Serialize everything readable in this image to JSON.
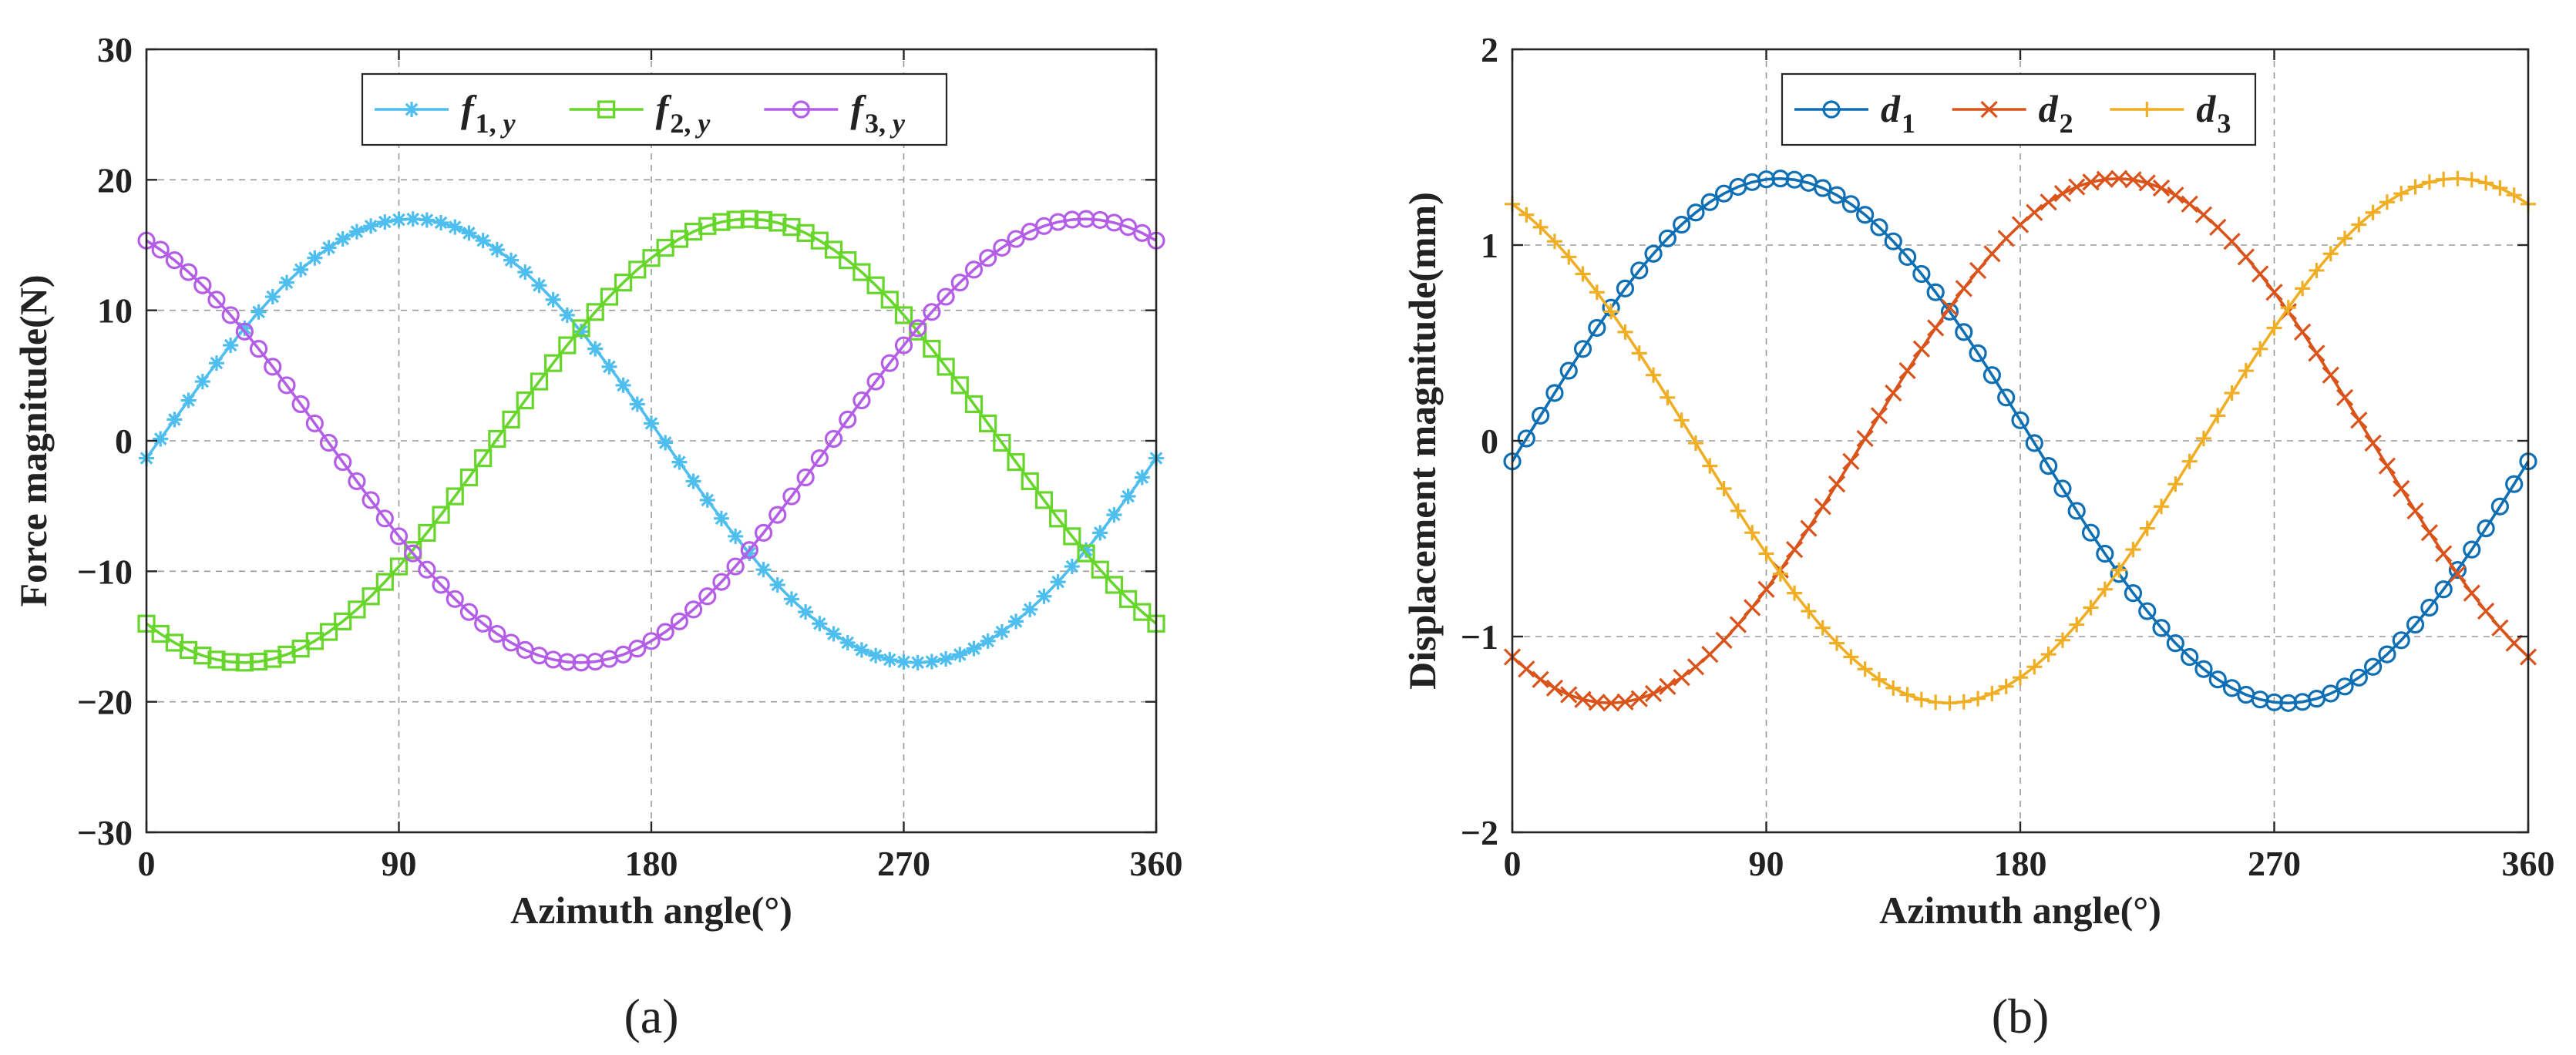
{
  "chart_data": [
    {
      "type": "line",
      "panel_label": "(a)",
      "xlabel": "Azimuth angle(°)",
      "ylabel": "Force magnitude(N)",
      "xlim": [
        0,
        360
      ],
      "ylim": [
        -30,
        30
      ],
      "xticks": [
        0,
        90,
        180,
        270,
        360
      ],
      "yticks": [
        -30,
        -20,
        -10,
        0,
        10,
        20,
        30
      ],
      "grid": true,
      "legend_position": "top-center",
      "series": [
        {
          "name": "f1,y",
          "label_main": "f",
          "label_sub": "1, y",
          "amplitude": 17,
          "phase_deg": -4.5,
          "marker": "asterisk",
          "color": "#4dbeee"
        },
        {
          "name": "f2,y",
          "label_main": "f",
          "label_sub": "2, y",
          "amplitude": 17,
          "phase_deg": -124.5,
          "marker": "square",
          "color": "#66d62a"
        },
        {
          "name": "f3,y",
          "label_main": "f",
          "label_sub": "3, y",
          "amplitude": 17,
          "phase_deg": 115.5,
          "marker": "circle",
          "color": "#b45ee8"
        }
      ],
      "x_step": 5
    },
    {
      "type": "line",
      "panel_label": "(b)",
      "xlabel": "Azimuth angle(°)",
      "ylabel": "Displacement magnitude(mm)",
      "xlim": [
        0,
        360
      ],
      "ylim": [
        -2,
        2
      ],
      "xticks": [
        0,
        90,
        180,
        270,
        360
      ],
      "yticks": [
        -2,
        -1,
        0,
        1,
        2
      ],
      "grid": true,
      "legend_position": "top-center",
      "series": [
        {
          "name": "d1",
          "label_main": "d",
          "label_sub": "1",
          "amplitude": 1.34,
          "phase_deg": -4.5,
          "marker": "circle",
          "color": "#0e6fb5"
        },
        {
          "name": "d2",
          "label_main": "d",
          "label_sub": "2",
          "amplitude": 1.34,
          "phase_deg": -124.5,
          "marker": "x",
          "color": "#d9531b"
        },
        {
          "name": "d3",
          "label_main": "d",
          "label_sub": "3",
          "amplitude": 1.34,
          "phase_deg": 115.5,
          "marker": "plus",
          "color": "#efae24"
        }
      ],
      "x_step": 5
    }
  ]
}
